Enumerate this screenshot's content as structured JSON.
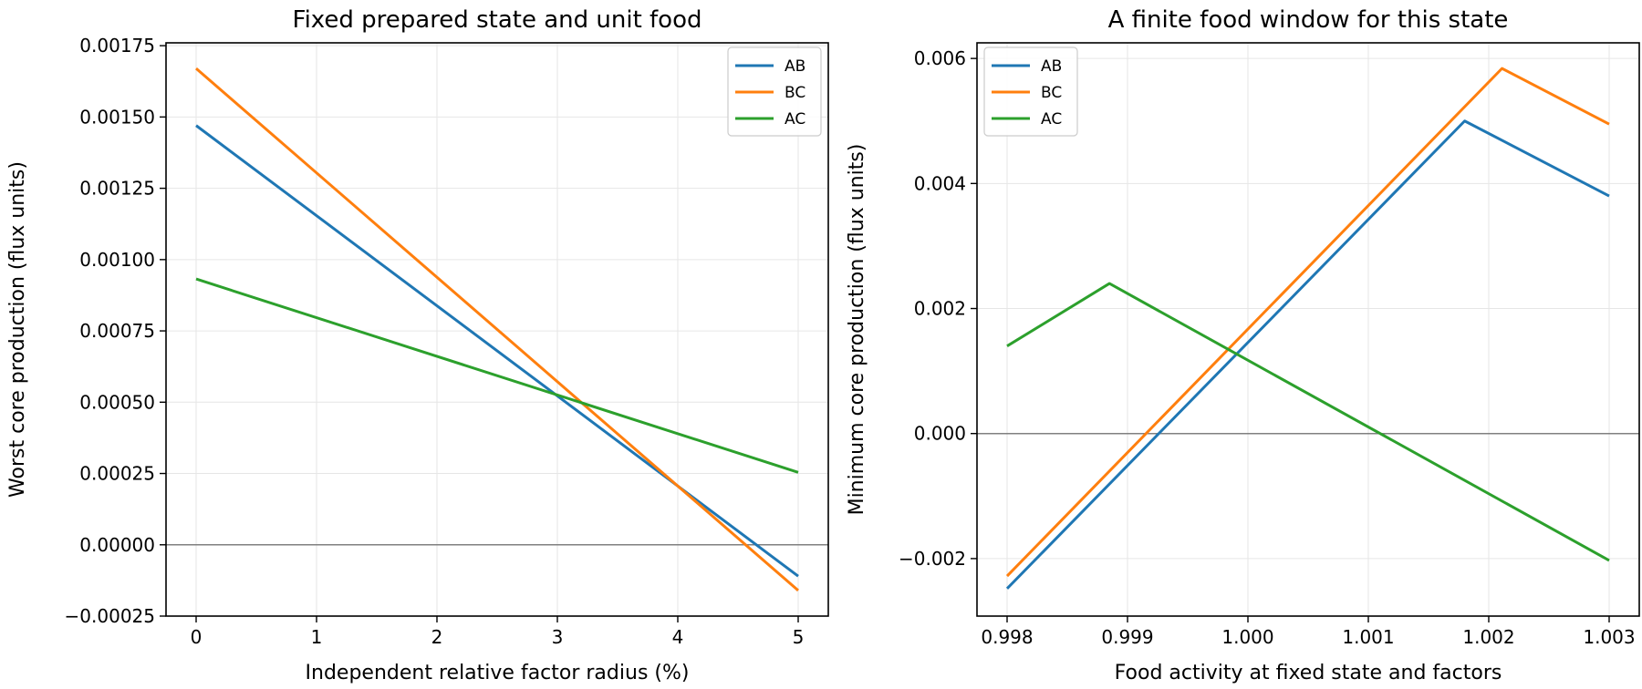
{
  "chart_data": [
    {
      "type": "line",
      "title": "Fixed prepared state and unit food",
      "xlabel": "Independent relative factor radius (%)",
      "ylabel": "Worst core production (flux units)",
      "xlim": [
        -0.25,
        5.25
      ],
      "ylim": [
        -0.00025,
        0.00176
      ],
      "xticks": [
        0,
        1,
        2,
        3,
        4,
        5
      ],
      "xtick_labels": [
        "0",
        "1",
        "2",
        "3",
        "4",
        "5"
      ],
      "yticks": [
        -0.00025,
        0,
        0.00025,
        0.0005,
        0.00075,
        0.001,
        0.00125,
        0.0015,
        0.00175
      ],
      "ytick_labels": [
        "−0.00025",
        "0.00000",
        "0.00025",
        "0.00050",
        "0.00075",
        "0.00100",
        "0.00125",
        "0.00150",
        "0.00175"
      ],
      "grid": true,
      "zero_line": true,
      "legend": "upper right",
      "series": [
        {
          "name": "AB",
          "color": "#1f77b4",
          "x": [
            0,
            5
          ],
          "y": [
            0.00147,
            -0.00011
          ]
        },
        {
          "name": "BC",
          "color": "#ff7f0e",
          "x": [
            0,
            5
          ],
          "y": [
            0.00167,
            -0.00016
          ]
        },
        {
          "name": "AC",
          "color": "#2ca02c",
          "x": [
            0,
            5
          ],
          "y": [
            0.000932,
            0.000254
          ]
        }
      ]
    },
    {
      "type": "line",
      "title": "A finite food window for this state",
      "xlabel": "Food activity at fixed state and factors",
      "ylabel": "Minimum core production (flux units)",
      "xlim": [
        0.99775,
        1.00325
      ],
      "ylim": [
        -0.00292,
        0.00625
      ],
      "xticks": [
        0.998,
        0.999,
        1.0,
        1.001,
        1.002,
        1.003
      ],
      "xtick_labels": [
        "0.998",
        "0.999",
        "1.000",
        "1.001",
        "1.002",
        "1.003"
      ],
      "yticks": [
        -0.002,
        0,
        0.002,
        0.004,
        0.006
      ],
      "ytick_labels": [
        "−0.002",
        "0.000",
        "0.002",
        "0.004",
        "0.006"
      ],
      "grid": true,
      "zero_line": true,
      "legend": "upper left",
      "series": [
        {
          "name": "AB",
          "color": "#1f77b4",
          "x": [
            0.998,
            1.0018,
            1.003
          ],
          "y": [
            -0.00248,
            0.005,
            0.0038
          ]
        },
        {
          "name": "BC",
          "color": "#ff7f0e",
          "x": [
            0.998,
            1.00211,
            1.003
          ],
          "y": [
            -0.00228,
            0.00584,
            0.00495
          ]
        },
        {
          "name": "AC",
          "color": "#2ca02c",
          "x": [
            0.998,
            0.99885,
            1.003
          ],
          "y": [
            0.0014,
            0.0024,
            -0.00203
          ]
        }
      ]
    }
  ]
}
